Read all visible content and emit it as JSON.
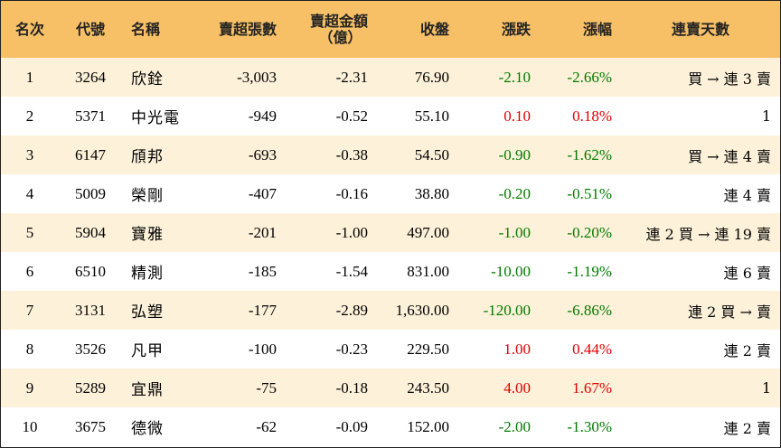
{
  "colors": {
    "header_bg": "#f7c066",
    "row_alt_bg": "#fdf1d9",
    "up": "#e00000",
    "down": "#007a00"
  },
  "headers": {
    "rank": "名次",
    "code": "代號",
    "name": "名稱",
    "net_sell_lots": "賣超張數",
    "net_sell_amount_line1": "賣超金額",
    "net_sell_amount_line2": "（億）",
    "close": "收盤",
    "change": "漲跌",
    "change_pct": "漲幅",
    "streak": "連賣天數"
  },
  "rows": [
    {
      "rank": "1",
      "code": "3264",
      "name": "欣銓",
      "lots": "-3,003",
      "amount": "-2.31",
      "close": "76.90",
      "change": "-2.10",
      "pct": "-2.66%",
      "dir": "down",
      "streak": "買 → 連 3 賣"
    },
    {
      "rank": "2",
      "code": "5371",
      "name": "中光電",
      "lots": "-949",
      "amount": "-0.52",
      "close": "55.10",
      "change": "0.10",
      "pct": "0.18%",
      "dir": "up",
      "streak": "1"
    },
    {
      "rank": "3",
      "code": "6147",
      "name": "頎邦",
      "lots": "-693",
      "amount": "-0.38",
      "close": "54.50",
      "change": "-0.90",
      "pct": "-1.62%",
      "dir": "down",
      "streak": "買 → 連 4 賣"
    },
    {
      "rank": "4",
      "code": "5009",
      "name": "榮剛",
      "lots": "-407",
      "amount": "-0.16",
      "close": "38.80",
      "change": "-0.20",
      "pct": "-0.51%",
      "dir": "down",
      "streak": "連 4 賣"
    },
    {
      "rank": "5",
      "code": "5904",
      "name": "寶雅",
      "lots": "-201",
      "amount": "-1.00",
      "close": "497.00",
      "change": "-1.00",
      "pct": "-0.20%",
      "dir": "down",
      "streak": "連 2 買 → 連 19 賣"
    },
    {
      "rank": "6",
      "code": "6510",
      "name": "精測",
      "lots": "-185",
      "amount": "-1.54",
      "close": "831.00",
      "change": "-10.00",
      "pct": "-1.19%",
      "dir": "down",
      "streak": "連 6 賣"
    },
    {
      "rank": "7",
      "code": "3131",
      "name": "弘塑",
      "lots": "-177",
      "amount": "-2.89",
      "close": "1,630.00",
      "change": "-120.00",
      "pct": "-6.86%",
      "dir": "down",
      "streak": "連 2 買 → 賣"
    },
    {
      "rank": "8",
      "code": "3526",
      "name": "凡甲",
      "lots": "-100",
      "amount": "-0.23",
      "close": "229.50",
      "change": "1.00",
      "pct": "0.44%",
      "dir": "up",
      "streak": "連 2 賣"
    },
    {
      "rank": "9",
      "code": "5289",
      "name": "宜鼎",
      "lots": "-75",
      "amount": "-0.18",
      "close": "243.50",
      "change": "4.00",
      "pct": "1.67%",
      "dir": "up",
      "streak": "1"
    },
    {
      "rank": "10",
      "code": "3675",
      "name": "德微",
      "lots": "-62",
      "amount": "-0.09",
      "close": "152.00",
      "change": "-2.00",
      "pct": "-1.30%",
      "dir": "down",
      "streak": "連 2 賣"
    }
  ]
}
